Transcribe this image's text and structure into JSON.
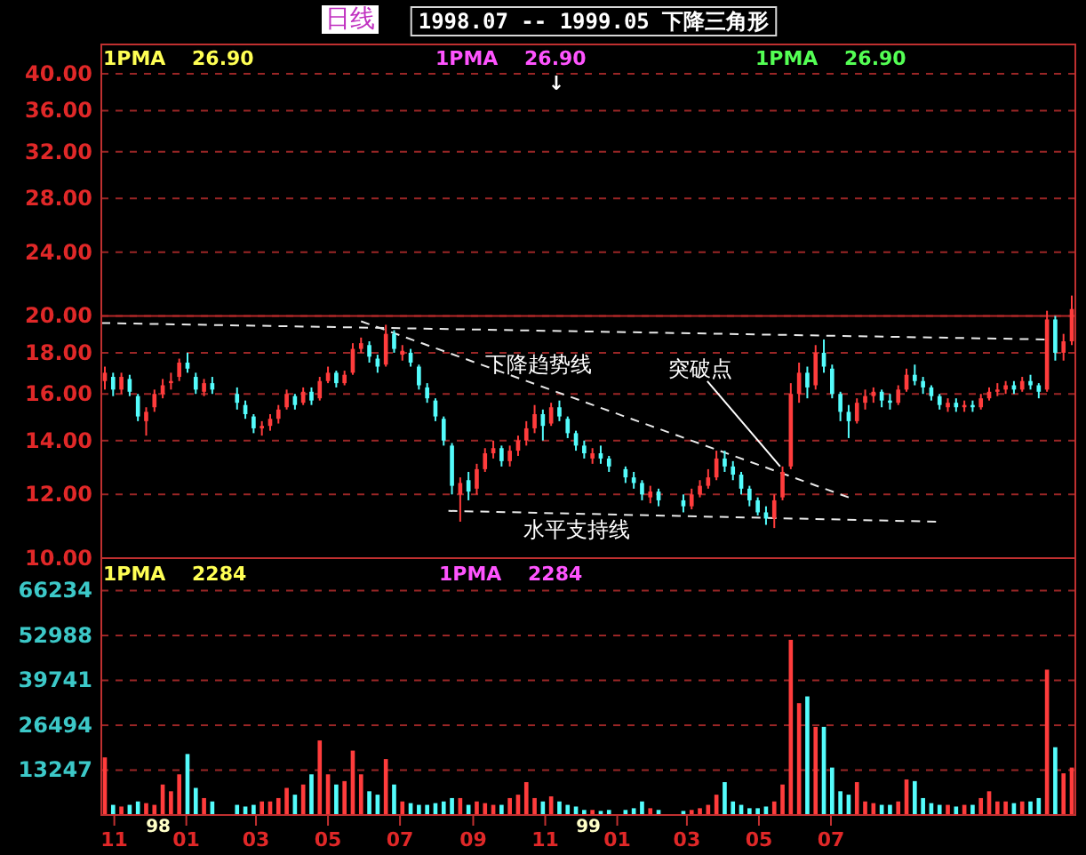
{
  "chart_data": [
    {
      "type": "candlestick",
      "title": "1998.07 -- 1999.05 下降三角形",
      "subtitle": "日线",
      "x": [
        "1997-10-24",
        "1997-10-31",
        "1997-11-07",
        "1997-11-14",
        "1997-11-21",
        "1997-11-28",
        "1997-12-05",
        "1997-12-12",
        "1997-12-19",
        "1997-12-26",
        "1998-01-02",
        "1998-01-09",
        "1998-01-16",
        "1998-01-23",
        "1998-02-13",
        "1998-02-20",
        "1998-02-27",
        "1998-03-06",
        "1998-03-13",
        "1998-03-20",
        "1998-03-27",
        "1998-04-03",
        "1998-04-10",
        "1998-04-17",
        "1998-04-24",
        "1998-05-01",
        "1998-05-08",
        "1998-05-15",
        "1998-05-22",
        "1998-05-29",
        "1998-06-05",
        "1998-06-12",
        "1998-06-19",
        "1998-06-26",
        "1998-07-03",
        "1998-07-10",
        "1998-07-17",
        "1998-07-24",
        "1998-07-31",
        "1998-08-07",
        "1998-08-14",
        "1998-08-21",
        "1998-08-28",
        "1998-09-04",
        "1998-09-11",
        "1998-09-18",
        "1998-09-25",
        "1998-10-02",
        "1998-10-09",
        "1998-10-16",
        "1998-10-23",
        "1998-10-30",
        "1998-11-06",
        "1998-11-13",
        "1998-11-20",
        "1998-11-27",
        "1998-12-04",
        "1998-12-11",
        "1998-12-18",
        "1998-12-25",
        "1999-01-08",
        "1999-01-15",
        "1999-01-22",
        "1999-01-29",
        "1999-02-05",
        "1999-02-26",
        "1999-03-05",
        "1999-03-12",
        "1999-03-19",
        "1999-03-26",
        "1999-04-02",
        "1999-04-09",
        "1999-04-16",
        "1999-04-23",
        "1999-04-30",
        "1999-05-07",
        "1999-05-14",
        "1999-05-21",
        "1999-05-28",
        "1999-06-04",
        "1999-06-11",
        "1999-06-18",
        "1999-06-25",
        "1999-07-02",
        "1999-07-09",
        "1999-07-16",
        "1999-07-23",
        "1999-07-30",
        "1999-08-06",
        "1999-08-13",
        "1999-08-20",
        "1999-08-27",
        "1999-09-03",
        "1999-09-10",
        "1999-09-17",
        "1999-09-24",
        "1999-10-01",
        "1999-10-08",
        "1999-10-15",
        "1999-10-22",
        "1999-10-29",
        "1999-11-05",
        "1999-11-12",
        "1999-11-19",
        "1999-11-26",
        "1999-12-03",
        "1999-12-10",
        "1999-12-17",
        "1999-12-24",
        "1999-12-31",
        "2000-01-07",
        "2000-01-14",
        "2000-01-21"
      ],
      "ohlc": [
        [
          16.6,
          17.3,
          16.2,
          17.0
        ],
        [
          16.8,
          17.0,
          15.9,
          16.2
        ],
        [
          16.2,
          17.0,
          16.0,
          16.8
        ],
        [
          16.7,
          16.9,
          15.9,
          16.1
        ],
        [
          15.9,
          16.0,
          14.8,
          15.0
        ],
        [
          14.8,
          15.4,
          14.2,
          15.2
        ],
        [
          15.4,
          16.2,
          15.2,
          16.0
        ],
        [
          16.0,
          16.7,
          15.8,
          16.4
        ],
        [
          16.5,
          17.0,
          16.2,
          16.6
        ],
        [
          16.8,
          17.7,
          16.6,
          17.5
        ],
        [
          17.5,
          18.0,
          17.0,
          17.2
        ],
        [
          16.8,
          17.0,
          16.0,
          16.2
        ],
        [
          16.1,
          16.7,
          15.9,
          16.5
        ],
        [
          16.5,
          16.8,
          16.0,
          16.2
        ],
        [
          16.0,
          16.3,
          15.3,
          15.6
        ],
        [
          15.5,
          15.7,
          14.9,
          15.1
        ],
        [
          15.0,
          15.1,
          14.3,
          14.5
        ],
        [
          14.5,
          14.8,
          14.2,
          14.6
        ],
        [
          14.6,
          15.1,
          14.4,
          14.9
        ],
        [
          14.9,
          15.5,
          14.7,
          15.3
        ],
        [
          15.4,
          16.2,
          15.3,
          16.0
        ],
        [
          15.9,
          16.0,
          15.3,
          15.5
        ],
        [
          15.6,
          16.3,
          15.5,
          16.1
        ],
        [
          16.1,
          16.3,
          15.5,
          15.7
        ],
        [
          15.8,
          16.8,
          15.7,
          16.6
        ],
        [
          16.6,
          17.3,
          16.5,
          17.0
        ],
        [
          17.0,
          17.1,
          16.3,
          16.5
        ],
        [
          16.5,
          17.1,
          16.4,
          16.9
        ],
        [
          17.0,
          18.5,
          16.9,
          18.2
        ],
        [
          18.2,
          18.8,
          18.0,
          18.5
        ],
        [
          18.4,
          18.6,
          17.5,
          17.8
        ],
        [
          17.7,
          17.9,
          17.0,
          17.3
        ],
        [
          17.4,
          19.5,
          17.3,
          19.0
        ],
        [
          19.0,
          19.2,
          18.0,
          18.2
        ],
        [
          17.9,
          18.4,
          17.6,
          18.1
        ],
        [
          18.0,
          18.2,
          17.3,
          17.5
        ],
        [
          17.3,
          17.4,
          16.2,
          16.4
        ],
        [
          16.3,
          16.5,
          15.6,
          15.8
        ],
        [
          15.7,
          15.8,
          14.8,
          15.0
        ],
        [
          14.9,
          15.0,
          13.8,
          14.0
        ],
        [
          13.8,
          13.9,
          12.0,
          12.3
        ],
        [
          12.0,
          12.6,
          11.1,
          12.4
        ],
        [
          12.5,
          12.8,
          11.8,
          12.1
        ],
        [
          12.2,
          13.1,
          12.0,
          12.9
        ],
        [
          12.9,
          13.7,
          12.8,
          13.5
        ],
        [
          13.5,
          14.0,
          13.3,
          13.7
        ],
        [
          13.7,
          13.8,
          13.0,
          13.2
        ],
        [
          13.2,
          13.8,
          13.0,
          13.6
        ],
        [
          13.6,
          14.2,
          13.4,
          14.0
        ],
        [
          14.0,
          14.8,
          13.8,
          14.5
        ],
        [
          14.5,
          15.5,
          14.3,
          15.1
        ],
        [
          15.1,
          15.3,
          14.0,
          14.6
        ],
        [
          14.7,
          15.6,
          14.6,
          15.4
        ],
        [
          15.4,
          15.7,
          14.8,
          15.0
        ],
        [
          14.9,
          15.0,
          14.1,
          14.3
        ],
        [
          14.3,
          14.4,
          13.6,
          13.8
        ],
        [
          13.8,
          14.0,
          13.3,
          13.5
        ],
        [
          13.3,
          13.7,
          13.1,
          13.5
        ],
        [
          13.5,
          13.8,
          13.1,
          13.3
        ],
        [
          13.3,
          13.4,
          12.8,
          13.0
        ],
        [
          12.9,
          13.0,
          12.4,
          12.6
        ],
        [
          12.6,
          12.8,
          12.2,
          12.4
        ],
        [
          12.4,
          12.5,
          11.8,
          12.0
        ],
        [
          11.9,
          12.3,
          11.7,
          12.1
        ],
        [
          12.1,
          12.2,
          11.6,
          11.8
        ],
        [
          11.8,
          12.0,
          11.4,
          11.6
        ],
        [
          11.6,
          12.2,
          11.5,
          12.0
        ],
        [
          12.0,
          12.5,
          11.9,
          12.3
        ],
        [
          12.3,
          12.9,
          12.2,
          12.6
        ],
        [
          12.6,
          13.6,
          12.5,
          13.3
        ],
        [
          13.3,
          13.6,
          12.8,
          13.0
        ],
        [
          13.0,
          13.2,
          12.5,
          12.7
        ],
        [
          12.7,
          12.8,
          12.0,
          12.2
        ],
        [
          12.2,
          12.3,
          11.6,
          11.8
        ],
        [
          11.8,
          11.9,
          11.3,
          11.4
        ],
        [
          11.4,
          11.6,
          11.0,
          11.2
        ],
        [
          11.2,
          12.0,
          10.9,
          11.8
        ],
        [
          11.9,
          13.0,
          11.8,
          12.8
        ],
        [
          13.0,
          16.5,
          12.9,
          16.0
        ],
        [
          16.0,
          17.5,
          15.6,
          17.0
        ],
        [
          17.0,
          17.3,
          15.8,
          16.3
        ],
        [
          16.4,
          18.4,
          16.2,
          18.0
        ],
        [
          18.0,
          18.7,
          17.0,
          17.3
        ],
        [
          17.2,
          17.4,
          15.8,
          16.0
        ],
        [
          16.0,
          16.1,
          14.8,
          15.2
        ],
        [
          15.2,
          15.5,
          14.1,
          14.8
        ],
        [
          14.8,
          15.8,
          14.7,
          15.6
        ],
        [
          15.6,
          16.2,
          15.3,
          15.9
        ],
        [
          15.9,
          16.3,
          15.6,
          16.1
        ],
        [
          16.1,
          16.2,
          15.4,
          15.7
        ],
        [
          15.7,
          16.0,
          15.3,
          15.6
        ],
        [
          15.6,
          16.4,
          15.5,
          16.2
        ],
        [
          16.2,
          17.2,
          16.1,
          16.9
        ],
        [
          16.9,
          17.4,
          16.4,
          16.6
        ],
        [
          16.6,
          16.8,
          16.0,
          16.3
        ],
        [
          16.3,
          16.4,
          15.7,
          15.9
        ],
        [
          15.9,
          16.0,
          15.3,
          15.5
        ],
        [
          15.4,
          15.8,
          15.2,
          15.6
        ],
        [
          15.6,
          15.8,
          15.2,
          15.4
        ],
        [
          15.4,
          15.7,
          15.2,
          15.5
        ],
        [
          15.5,
          15.7,
          15.2,
          15.4
        ],
        [
          15.4,
          16.0,
          15.3,
          15.8
        ],
        [
          15.8,
          16.3,
          15.7,
          16.1
        ],
        [
          16.1,
          16.5,
          15.9,
          16.2
        ],
        [
          16.2,
          16.6,
          16.0,
          16.4
        ],
        [
          16.4,
          16.6,
          16.0,
          16.2
        ],
        [
          16.2,
          16.8,
          16.1,
          16.6
        ],
        [
          16.6,
          16.9,
          16.2,
          16.4
        ],
        [
          16.4,
          16.5,
          15.8,
          16.1
        ],
        [
          16.2,
          20.3,
          16.1,
          19.8
        ],
        [
          19.8,
          20.0,
          17.6,
          18.0
        ],
        [
          18.0,
          19.0,
          17.6,
          18.6
        ],
        [
          18.6,
          21.2,
          18.4,
          20.4
        ]
      ],
      "colors": [
        "#ff3c3c",
        "#54fcfc",
        "#ff3c3c",
        "#54fcfc",
        "#54fcfc",
        "#ff3c3c",
        "#ff3c3c",
        "#ff3c3c",
        "#ff3c3c",
        "#ff3c3c",
        "#54fcfc",
        "#54fcfc",
        "#ff3c3c",
        "#54fcfc",
        "#54fcfc",
        "#54fcfc",
        "#54fcfc",
        "#ff3c3c",
        "#ff3c3c",
        "#ff3c3c",
        "#ff3c3c",
        "#54fcfc",
        "#ff3c3c",
        "#54fcfc",
        "#ff3c3c",
        "#ff3c3c",
        "#54fcfc",
        "#ff3c3c",
        "#ff3c3c",
        "#ff3c3c",
        "#54fcfc",
        "#54fcfc",
        "#ff3c3c",
        "#54fcfc",
        "#ff3c3c",
        "#54fcfc",
        "#54fcfc",
        "#54fcfc",
        "#54fcfc",
        "#54fcfc",
        "#54fcfc",
        "#ff3c3c",
        "#54fcfc",
        "#ff3c3c",
        "#ff3c3c",
        "#ff3c3c",
        "#54fcfc",
        "#ff3c3c",
        "#ff3c3c",
        "#ff3c3c",
        "#ff3c3c",
        "#54fcfc",
        "#ff3c3c",
        "#54fcfc",
        "#54fcfc",
        "#54fcfc",
        "#54fcfc",
        "#ff3c3c",
        "#54fcfc",
        "#54fcfc",
        "#54fcfc",
        "#54fcfc",
        "#54fcfc",
        "#ff3c3c",
        "#54fcfc",
        "#54fcfc",
        "#ff3c3c",
        "#ff3c3c",
        "#ff3c3c",
        "#ff3c3c",
        "#54fcfc",
        "#54fcfc",
        "#54fcfc",
        "#54fcfc",
        "#54fcfc",
        "#54fcfc",
        "#ff3c3c",
        "#ff3c3c",
        "#ff3c3c",
        "#ff3c3c",
        "#54fcfc",
        "#ff3c3c",
        "#54fcfc",
        "#54fcfc",
        "#54fcfc",
        "#54fcfc",
        "#ff3c3c",
        "#ff3c3c",
        "#ff3c3c",
        "#54fcfc",
        "#54fcfc",
        "#ff3c3c",
        "#ff3c3c",
        "#54fcfc",
        "#54fcfc",
        "#54fcfc",
        "#54fcfc",
        "#ff3c3c",
        "#54fcfc",
        "#ff3c3c",
        "#54fcfc",
        "#ff3c3c",
        "#ff3c3c",
        "#ff3c3c",
        "#ff3c3c",
        "#54fcfc",
        "#ff3c3c",
        "#54fcfc",
        "#54fcfc",
        "#ff3c3c",
        "#54fcfc",
        "#ff3c3c",
        "#ff3c3c"
      ],
      "series": [
        {
          "type": "line",
          "x": [
            "1997-10-21",
            "1999-12-29"
          ],
          "values": [
            19.6,
            18.7
          ],
          "color": "#e8e8e8",
          "line_style": "dashed"
        },
        {
          "type": "line",
          "x": [
            "1998-05-29",
            "1999-07-16"
          ],
          "values": [
            19.7,
            11.9
          ],
          "color": "#e8e8e8",
          "line_style": "dashed"
        },
        {
          "type": "line",
          "x": [
            "1998-08-11",
            "1999-09-28"
          ],
          "values": [
            11.45,
            11.1
          ],
          "color": "#e8e8e8",
          "line_style": "dashed"
        }
      ],
      "xlim": [
        "1997-10-21",
        "2000-01-24"
      ],
      "ylim": [
        10,
        43.5
      ],
      "yticks": [
        {
          "value": 10,
          "label": "10.00"
        },
        {
          "value": 12,
          "label": "12.00"
        },
        {
          "value": 14,
          "label": "14.00"
        },
        {
          "value": 16,
          "label": "16.00"
        },
        {
          "value": 18,
          "label": "18.00"
        },
        {
          "value": 20,
          "label": "20.00"
        },
        {
          "value": 24,
          "label": "24.00"
        },
        {
          "value": 28,
          "label": "28.00"
        },
        {
          "value": 32,
          "label": "32.00"
        },
        {
          "value": 36,
          "label": "36.00"
        },
        {
          "value": 40,
          "label": "40.00"
        }
      ],
      "log": true,
      "grid": "y",
      "tick_labels": "y",
      "ref_lines": [
        {
          "axis": "y",
          "value": 20,
          "color": "#b42828"
        }
      ],
      "annotations": [
        "1PMA 26.90",
        "1PMA 26.90",
        "1PMA 26.90",
        "↓",
        {
          "text": "下降趋势线",
          "x": "1998-10-26",
          "y": 16.4
        },
        {
          "text": "突破点",
          "x": "1999-05-19",
          "y": 13.0
        },
        {
          "text": "水平支持线",
          "x": "1998-11-28",
          "y": 11.4
        }
      ]
    },
    {
      "type": "bar",
      "x": [
        "1997-10-24",
        "1997-10-31",
        "1997-11-07",
        "1997-11-14",
        "1997-11-21",
        "1997-11-28",
        "1997-12-05",
        "1997-12-12",
        "1997-12-19",
        "1997-12-26",
        "1998-01-02",
        "1998-01-09",
        "1998-01-16",
        "1998-01-23",
        "1998-02-13",
        "1998-02-20",
        "1998-02-27",
        "1998-03-06",
        "1998-03-13",
        "1998-03-20",
        "1998-03-27",
        "1998-04-03",
        "1998-04-10",
        "1998-04-17",
        "1998-04-24",
        "1998-05-01",
        "1998-05-08",
        "1998-05-15",
        "1998-05-22",
        "1998-05-29",
        "1998-06-05",
        "1998-06-12",
        "1998-06-19",
        "1998-06-26",
        "1998-07-03",
        "1998-07-10",
        "1998-07-17",
        "1998-07-24",
        "1998-07-31",
        "1998-08-07",
        "1998-08-14",
        "1998-08-21",
        "1998-08-28",
        "1998-09-04",
        "1998-09-11",
        "1998-09-18",
        "1998-09-25",
        "1998-10-02",
        "1998-10-09",
        "1998-10-16",
        "1998-10-23",
        "1998-10-30",
        "1998-11-06",
        "1998-11-13",
        "1998-11-20",
        "1998-11-27",
        "1998-12-04",
        "1998-12-11",
        "1998-12-18",
        "1998-12-25",
        "1999-01-08",
        "1999-01-15",
        "1999-01-22",
        "1999-01-29",
        "1999-02-05",
        "1999-02-26",
        "1999-03-05",
        "1999-03-12",
        "1999-03-19",
        "1999-03-26",
        "1999-04-02",
        "1999-04-09",
        "1999-04-16",
        "1999-04-23",
        "1999-04-30",
        "1999-05-07",
        "1999-05-14",
        "1999-05-21",
        "1999-05-28",
        "1999-06-04",
        "1999-06-11",
        "1999-06-18",
        "1999-06-25",
        "1999-07-02",
        "1999-07-09",
        "1999-07-16",
        "1999-07-23",
        "1999-07-30",
        "1999-08-06",
        "1999-08-13",
        "1999-08-20",
        "1999-08-27",
        "1999-09-03",
        "1999-09-10",
        "1999-09-17",
        "1999-09-24",
        "1999-10-01",
        "1999-10-08",
        "1999-10-15",
        "1999-10-22",
        "1999-10-29",
        "1999-11-05",
        "1999-11-12",
        "1999-11-19",
        "1999-11-26",
        "1999-12-03",
        "1999-12-10",
        "1999-12-17",
        "1999-12-24",
        "1999-12-31",
        "2000-01-07",
        "2000-01-14",
        "2000-01-21"
      ],
      "values": [
        17000,
        3000,
        2500,
        3000,
        4000,
        3500,
        3000,
        9000,
        7000,
        12000,
        18000,
        8000,
        5000,
        4000,
        3000,
        2500,
        3000,
        4000,
        4000,
        5000,
        8000,
        6000,
        9000,
        12000,
        22000,
        12000,
        9000,
        10000,
        19000,
        12000,
        7000,
        6000,
        16500,
        9000,
        4000,
        3500,
        3000,
        3000,
        3500,
        4000,
        5000,
        5000,
        3000,
        4000,
        3500,
        3000,
        3000,
        5000,
        6000,
        9700,
        5000,
        4000,
        5500,
        4000,
        3000,
        2500,
        1500,
        1500,
        1200,
        1500,
        1500,
        2000,
        4000,
        2000,
        1500,
        1200,
        1500,
        2000,
        3000,
        6000,
        9700,
        4000,
        3000,
        2000,
        2000,
        2500,
        4000,
        9000,
        51700,
        33000,
        35000,
        26000,
        26000,
        14000,
        7000,
        6000,
        9700,
        4000,
        3500,
        3000,
        3000,
        4000,
        10500,
        10000,
        5000,
        3500,
        3000,
        3000,
        2500,
        3000,
        3000,
        5000,
        7000,
        4000,
        4000,
        3500,
        4000,
        4000,
        5000,
        42900,
        20000,
        12300,
        14000
      ],
      "colors": [
        "#ff3c3c",
        "#54fcfc",
        "#ff3c3c",
        "#54fcfc",
        "#54fcfc",
        "#ff3c3c",
        "#ff3c3c",
        "#ff3c3c",
        "#ff3c3c",
        "#ff3c3c",
        "#54fcfc",
        "#54fcfc",
        "#ff3c3c",
        "#54fcfc",
        "#54fcfc",
        "#54fcfc",
        "#54fcfc",
        "#ff3c3c",
        "#ff3c3c",
        "#ff3c3c",
        "#ff3c3c",
        "#54fcfc",
        "#ff3c3c",
        "#54fcfc",
        "#ff3c3c",
        "#ff3c3c",
        "#54fcfc",
        "#ff3c3c",
        "#ff3c3c",
        "#ff3c3c",
        "#54fcfc",
        "#54fcfc",
        "#ff3c3c",
        "#54fcfc",
        "#ff3c3c",
        "#54fcfc",
        "#54fcfc",
        "#54fcfc",
        "#54fcfc",
        "#54fcfc",
        "#54fcfc",
        "#ff3c3c",
        "#54fcfc",
        "#ff3c3c",
        "#ff3c3c",
        "#ff3c3c",
        "#54fcfc",
        "#ff3c3c",
        "#ff3c3c",
        "#ff3c3c",
        "#ff3c3c",
        "#54fcfc",
        "#ff3c3c",
        "#54fcfc",
        "#54fcfc",
        "#54fcfc",
        "#54fcfc",
        "#ff3c3c",
        "#54fcfc",
        "#54fcfc",
        "#54fcfc",
        "#54fcfc",
        "#54fcfc",
        "#ff3c3c",
        "#54fcfc",
        "#54fcfc",
        "#ff3c3c",
        "#ff3c3c",
        "#ff3c3c",
        "#ff3c3c",
        "#54fcfc",
        "#54fcfc",
        "#54fcfc",
        "#54fcfc",
        "#54fcfc",
        "#54fcfc",
        "#ff3c3c",
        "#ff3c3c",
        "#ff3c3c",
        "#ff3c3c",
        "#54fcfc",
        "#ff3c3c",
        "#54fcfc",
        "#54fcfc",
        "#54fcfc",
        "#54fcfc",
        "#ff3c3c",
        "#ff3c3c",
        "#ff3c3c",
        "#54fcfc",
        "#54fcfc",
        "#ff3c3c",
        "#ff3c3c",
        "#54fcfc",
        "#54fcfc",
        "#54fcfc",
        "#54fcfc",
        "#ff3c3c",
        "#54fcfc",
        "#ff3c3c",
        "#54fcfc",
        "#ff3c3c",
        "#ff3c3c",
        "#ff3c3c",
        "#ff3c3c",
        "#54fcfc",
        "#ff3c3c",
        "#54fcfc",
        "#54fcfc",
        "#ff3c3c",
        "#54fcfc",
        "#ff3c3c",
        "#ff3c3c"
      ],
      "xlim": [
        "1997-10-21",
        "2000-01-24"
      ],
      "xticks": [
        {
          "value": "1997-11-01",
          "label": "11"
        },
        {
          "value": "1998-01-01",
          "label": "01"
        },
        {
          "value": "1998-03-01",
          "label": "03"
        },
        {
          "value": "1998-05-01",
          "label": "05"
        },
        {
          "value": "1998-07-01",
          "label": "07"
        },
        {
          "value": "1998-09-01",
          "label": "09"
        },
        {
          "value": "1998-11-01",
          "label": "11"
        },
        {
          "value": "1999-01-01",
          "label": "01"
        },
        {
          "value": "1999-03-01",
          "label": "03"
        },
        {
          "value": "1999-05-01",
          "label": "05"
        },
        {
          "value": "1999-07-01",
          "label": "07"
        }
      ],
      "ylim": [
        0,
        75800
      ],
      "yticks": [
        13247,
        26494,
        39741,
        52988,
        66234
      ],
      "grid": "y",
      "annotations": [
        "1PMA 2284",
        "1PMA 2284",
        "98",
        "99"
      ]
    }
  ]
}
